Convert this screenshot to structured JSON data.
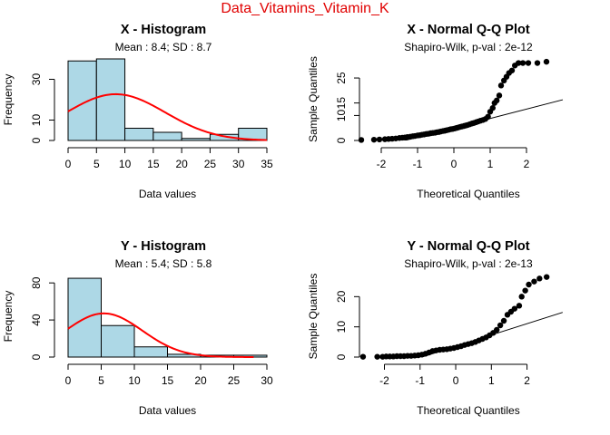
{
  "figure": {
    "title": "Data_Vitamins_Vitamin_K"
  },
  "chart_data": [
    {
      "type": "bar",
      "title": "X - Histogram",
      "subtitle": "Mean : 8.4; SD : 8.7",
      "xlabel": "Data values",
      "ylabel": "Frequency",
      "bins": [
        [
          0,
          5
        ],
        [
          5,
          10
        ],
        [
          10,
          15
        ],
        [
          15,
          20
        ],
        [
          20,
          25
        ],
        [
          25,
          30
        ],
        [
          30,
          35
        ]
      ],
      "values": [
        39,
        40,
        6,
        4,
        1,
        3,
        6
      ],
      "xlim": [
        0,
        35
      ],
      "ylim": [
        0,
        40
      ],
      "xticks": [
        0,
        5,
        10,
        15,
        20,
        25,
        30,
        35
      ],
      "yticks": [
        0,
        10,
        30
      ],
      "bar_color": "#add8e6",
      "density_curve": {
        "mean": 8.4,
        "sd": 8.7,
        "n": 99,
        "bin_width": 5,
        "color": "#ff0000"
      }
    },
    {
      "type": "scatter",
      "title": "X - Normal Q-Q Plot",
      "subtitle": "Shapiro-Wilk, p-val : 2e-12",
      "xlabel": "Theoretical Quantiles",
      "ylabel": "Sample Quantiles",
      "xlim": [
        -2.6,
        2.8
      ],
      "ylim": [
        0,
        33
      ],
      "xticks": [
        -2,
        -1,
        0,
        1,
        2
      ],
      "yticks": [
        0,
        10,
        15,
        25
      ],
      "points": [
        [
          -2.55,
          0.2
        ],
        [
          -2.2,
          0.3
        ],
        [
          -2.05,
          0.4
        ],
        [
          -1.9,
          0.5
        ],
        [
          -1.8,
          0.6
        ],
        [
          -1.7,
          0.7
        ],
        [
          -1.6,
          0.8
        ],
        [
          -1.5,
          1.0
        ],
        [
          -1.42,
          1.1
        ],
        [
          -1.35,
          1.2
        ],
        [
          -1.28,
          1.4
        ],
        [
          -1.2,
          1.5
        ],
        [
          -1.13,
          1.7
        ],
        [
          -1.07,
          1.8
        ],
        [
          -1.0,
          2.0
        ],
        [
          -0.94,
          2.1
        ],
        [
          -0.88,
          2.3
        ],
        [
          -0.82,
          2.4
        ],
        [
          -0.76,
          2.6
        ],
        [
          -0.7,
          2.7
        ],
        [
          -0.64,
          2.9
        ],
        [
          -0.58,
          3.0
        ],
        [
          -0.52,
          3.1
        ],
        [
          -0.47,
          3.3
        ],
        [
          -0.41,
          3.4
        ],
        [
          -0.36,
          3.6
        ],
        [
          -0.3,
          3.8
        ],
        [
          -0.25,
          3.9
        ],
        [
          -0.2,
          4.1
        ],
        [
          -0.14,
          4.3
        ],
        [
          -0.09,
          4.5
        ],
        [
          -0.04,
          4.6
        ],
        [
          0.02,
          4.8
        ],
        [
          0.07,
          5.0
        ],
        [
          0.12,
          5.2
        ],
        [
          0.17,
          5.4
        ],
        [
          0.22,
          5.6
        ],
        [
          0.28,
          5.8
        ],
        [
          0.33,
          6.0
        ],
        [
          0.38,
          6.2
        ],
        [
          0.44,
          6.5
        ],
        [
          0.5,
          6.8
        ],
        [
          0.55,
          7.0
        ],
        [
          0.61,
          7.3
        ],
        [
          0.67,
          7.6
        ],
        [
          0.73,
          7.9
        ],
        [
          0.8,
          8.2
        ],
        [
          0.87,
          8.6
        ],
        [
          0.94,
          9.5
        ],
        [
          1.0,
          11.5
        ],
        [
          1.07,
          13.0
        ],
        [
          1.12,
          15.0
        ],
        [
          1.18,
          16.0
        ],
        [
          1.25,
          18.0
        ],
        [
          1.3,
          22.0
        ],
        [
          1.38,
          24.0
        ],
        [
          1.45,
          25.5
        ],
        [
          1.52,
          27.0
        ],
        [
          1.6,
          28.0
        ],
        [
          1.68,
          30.0
        ],
        [
          1.78,
          31.0
        ],
        [
          1.9,
          31.0
        ],
        [
          2.05,
          31.0
        ],
        [
          2.3,
          31.0
        ],
        [
          2.55,
          31.5
        ]
      ],
      "reference_line": {
        "intercept": 5.05,
        "slope": 3.75
      }
    },
    {
      "type": "bar",
      "title": "Y - Histogram",
      "subtitle": "Mean : 5.4; SD : 5.8",
      "xlabel": "Data values",
      "ylabel": "Frequency",
      "bins": [
        [
          0,
          5
        ],
        [
          5,
          10
        ],
        [
          10,
          15
        ],
        [
          15,
          20
        ],
        [
          20,
          25
        ],
        [
          25,
          30
        ]
      ],
      "values": [
        85,
        34,
        11,
        3,
        2,
        2
      ],
      "xlim": [
        0,
        30
      ],
      "ylim": [
        0,
        88
      ],
      "xticks": [
        0,
        5,
        10,
        15,
        20,
        25,
        30
      ],
      "yticks": [
        0,
        40,
        80
      ],
      "bar_color": "#add8e6",
      "density_curve": {
        "mean": 5.4,
        "sd": 5.8,
        "n": 137,
        "bin_width": 5,
        "x_max": 28,
        "color": "#ff0000"
      }
    },
    {
      "type": "scatter",
      "title": "Y - Normal Q-Q Plot",
      "subtitle": "Shapiro-Wilk, p-val : 2e-13",
      "xlabel": "Theoretical Quantiles",
      "ylabel": "Sample Quantiles",
      "xlim": [
        -2.7,
        2.8
      ],
      "ylim": [
        0,
        27
      ],
      "xticks": [
        -2,
        -1,
        0,
        1,
        2
      ],
      "yticks": [
        0,
        10,
        20
      ],
      "points": [
        [
          -2.6,
          0.1
        ],
        [
          -2.2,
          0.1
        ],
        [
          -2.05,
          0.1
        ],
        [
          -1.95,
          0.2
        ],
        [
          -1.85,
          0.2
        ],
        [
          -1.75,
          0.2
        ],
        [
          -1.65,
          0.3
        ],
        [
          -1.55,
          0.3
        ],
        [
          -1.45,
          0.3
        ],
        [
          -1.35,
          0.4
        ],
        [
          -1.25,
          0.4
        ],
        [
          -1.15,
          0.5
        ],
        [
          -1.05,
          0.6
        ],
        [
          -0.95,
          0.8
        ],
        [
          -0.85,
          1.1
        ],
        [
          -0.75,
          1.5
        ],
        [
          -0.65,
          2.0
        ],
        [
          -0.55,
          2.2
        ],
        [
          -0.45,
          2.4
        ],
        [
          -0.35,
          2.5
        ],
        [
          -0.25,
          2.6
        ],
        [
          -0.15,
          2.8
        ],
        [
          -0.05,
          3.0
        ],
        [
          0.05,
          3.3
        ],
        [
          0.15,
          3.6
        ],
        [
          0.25,
          4.0
        ],
        [
          0.35,
          4.3
        ],
        [
          0.45,
          4.6
        ],
        [
          0.55,
          5.0
        ],
        [
          0.65,
          5.5
        ],
        [
          0.75,
          6.0
        ],
        [
          0.85,
          6.5
        ],
        [
          0.95,
          7.2
        ],
        [
          1.05,
          8.0
        ],
        [
          1.15,
          9.0
        ],
        [
          1.25,
          10.5
        ],
        [
          1.35,
          12.0
        ],
        [
          1.45,
          14.0
        ],
        [
          1.55,
          15.0
        ],
        [
          1.65,
          16.0
        ],
        [
          1.78,
          17.0
        ],
        [
          1.85,
          20.0
        ],
        [
          1.95,
          22.0
        ],
        [
          2.05,
          24.0
        ],
        [
          2.2,
          25.0
        ],
        [
          2.35,
          26.0
        ],
        [
          2.55,
          26.5
        ]
      ],
      "reference_line": {
        "intercept": 3.55,
        "slope": 3.75
      }
    }
  ]
}
